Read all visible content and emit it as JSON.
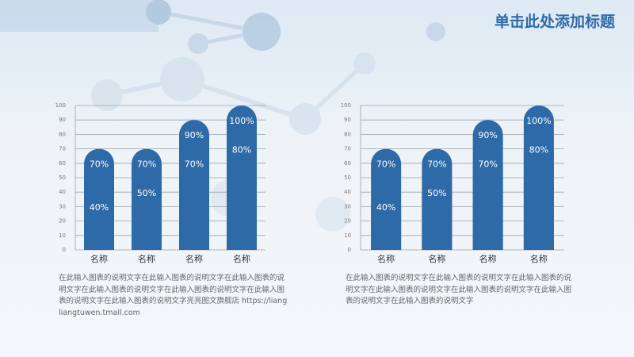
{
  "title": "单击此处添加标题",
  "chart_data": [
    {
      "type": "bar",
      "categories": [
        "名称",
        "名称",
        "名称",
        "名称"
      ],
      "series": [
        {
          "color": "#2e6aa8",
          "values": [
            70,
            70,
            90,
            100
          ],
          "value_labels": [
            "70%",
            "70%",
            "90%",
            "100%"
          ]
        },
        {
          "color": "#2e6aa8",
          "values": [
            40,
            50,
            70,
            80
          ],
          "value_labels": [
            "40%",
            "50%",
            "70%",
            "80%"
          ]
        }
      ],
      "ylim": [
        0,
        100
      ],
      "yticks": [
        0,
        10,
        20,
        30,
        40,
        50,
        60,
        70,
        80,
        90,
        100
      ],
      "grid": true,
      "caption": "在此输入图表的说明文字在此输入图表的说明文字在此输入图表的说明文字在此输入图表的说明文字在此输入图表的说明文字在此输入图表的说明文字在此输入图表的说明文字亮亮图文旗舰店 https://liangliangtuwen.tmall.com"
    },
    {
      "type": "bar",
      "categories": [
        "名称",
        "名称",
        "名称",
        "名称"
      ],
      "series": [
        {
          "color": "#2e6aa8",
          "values": [
            70,
            70,
            90,
            100
          ],
          "value_labels": [
            "70%",
            "70%",
            "90%",
            "100%"
          ]
        },
        {
          "color": "#2e6aa8",
          "values": [
            40,
            50,
            70,
            80
          ],
          "value_labels": [
            "40%",
            "50%",
            "70%",
            "80%"
          ]
        }
      ],
      "ylim": [
        0,
        100
      ],
      "yticks": [
        0,
        10,
        20,
        30,
        40,
        50,
        60,
        70,
        80,
        90,
        100
      ],
      "grid": true,
      "caption": "在此输入图表的说明文字在此输入图表的说明文字在此输入图表的说明文字在此输入图表的说明文字在此输入图表的说明文字在此输入图表的说明文字在此输入图表的说明文字"
    }
  ]
}
